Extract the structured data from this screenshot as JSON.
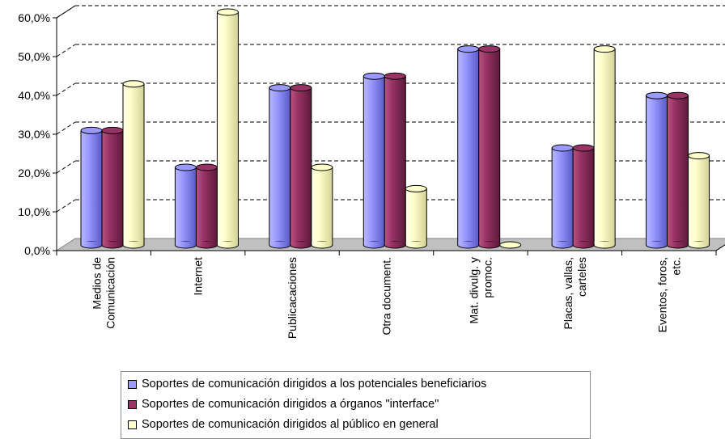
{
  "chart_data": {
    "type": "bar",
    "categories": [
      [
        "Medios de",
        "Comunicación"
      ],
      [
        "Internet"
      ],
      [
        "Publicacaciones"
      ],
      [
        "Otra document."
      ],
      [
        "Mat. divulg. y",
        "promoc."
      ],
      [
        "Placas, vallas,",
        "carteles"
      ],
      [
        "Eventos, foros,",
        "etc."
      ]
    ],
    "series": [
      {
        "name": "Soportes de comunicación dirigidos a los potenciales beneficiarios",
        "color": "#9999ff",
        "values": [
          29.5,
          20.0,
          40.5,
          43.5,
          50.5,
          25.0,
          38.5
        ]
      },
      {
        "name": "Soportes de comunicación dirigidos a órganos \"interface\"",
        "color": "#993366",
        "values": [
          29.5,
          20.0,
          40.5,
          43.5,
          50.5,
          25.0,
          38.5
        ]
      },
      {
        "name": "Soportes de comunicación dirigidos al público en general",
        "color": "#ffffcc",
        "values": [
          41.5,
          60.0,
          20.0,
          14.5,
          0.0,
          50.5,
          23.0
        ]
      }
    ],
    "y_ticks": [
      "0,0%",
      "10,0%",
      "20,0%",
      "30,0%",
      "40,0%",
      "50,0%",
      "60,0%"
    ],
    "ylim": [
      0,
      60
    ],
    "grid": true,
    "legend_position": "bottom"
  }
}
